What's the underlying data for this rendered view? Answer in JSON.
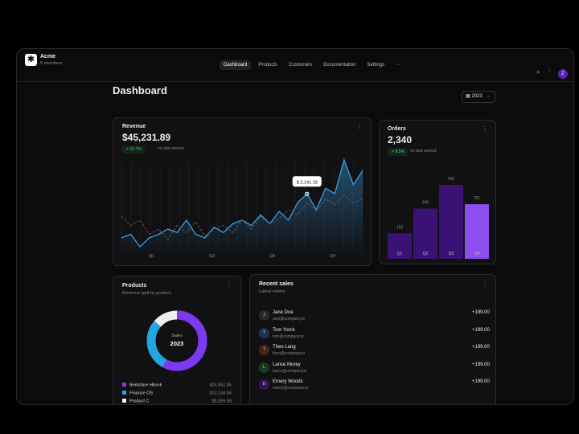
{
  "header": {
    "org": "Acme",
    "members": "8 members",
    "nav": [
      "Dashboard",
      "Products",
      "Customers",
      "Documentation",
      "Settings",
      "···"
    ],
    "avatar": "Z"
  },
  "page": {
    "title": "Dashboard",
    "year": "2023"
  },
  "revenue": {
    "title": "Revenue",
    "total": "$45,231.89",
    "change": "↗ 21.7%",
    "change_note": "vs last period",
    "chart": {
      "type": "line",
      "categories": [
        "Q1",
        "Q2",
        "Q3",
        "Q4"
      ],
      "tooltip": "$ 2,141.18",
      "tooltip_index": 20,
      "series": [
        {
          "color": "#3a9ee4",
          "values": [
            900,
            1000,
            650,
            900,
            1000,
            1150,
            1050,
            1400,
            1000,
            900,
            1200,
            1050,
            1300,
            1400,
            1250,
            1550,
            1300,
            1650,
            1400,
            1900,
            2141.18,
            1700,
            2300,
            2150,
            3100,
            2400,
            2800
          ]
        },
        {
          "color": "#5a5a5e",
          "dashed": true,
          "values": [
            1500,
            1250,
            1400,
            1000,
            1150,
            850,
            1250,
            1050,
            1350,
            950,
            1150,
            1250,
            1050,
            1400,
            1150,
            1500,
            1300,
            1450,
            1700,
            1550,
            1900,
            1650,
            2000,
            1850,
            2100,
            1900,
            2000
          ]
        }
      ]
    }
  },
  "orders": {
    "title": "Orders",
    "total": "2,340",
    "change": "↗ 8.5%",
    "change_note": "vs last period",
    "chart": {
      "type": "bar",
      "categories": [
        "Q1",
        "Q2",
        "Q3",
        "Q4"
      ],
      "values": [
        150,
        295,
        435,
        321
      ],
      "colors": [
        "#3a1276",
        "#3a1276",
        "#3a1276",
        "#8b4ff0"
      ]
    }
  },
  "products": {
    "title": "Products",
    "subtitle": "Revenue split by product",
    "center_label": "Sales",
    "center_value": "2023",
    "chart": {
      "type": "pie",
      "categories": [
        "Berkshire eBook",
        "Finance OS",
        "Product C"
      ],
      "values": [
        24951.86,
        12234.84,
        5899.88
      ],
      "value_labels": [
        "$24,951.86",
        "$12,234.84",
        "$5,899.88"
      ],
      "colors": [
        "#7b3aed",
        "#23a6e2",
        "#eeeeee"
      ]
    }
  },
  "sales": {
    "title": "Recent sales",
    "subtitle": "Latest orders",
    "rows": [
      {
        "initial": "J",
        "name": "Jane Doe",
        "email": "jane@company.io",
        "amount": "+199.00"
      },
      {
        "initial": "T",
        "name": "Tom Yorck",
        "email": "tom@company.io",
        "amount": "+199.00"
      },
      {
        "initial": "T",
        "name": "Theo Lang",
        "email": "theo@company.io",
        "amount": "+199.00"
      },
      {
        "initial": "L",
        "name": "Lance Morey",
        "email": "lance@company.io",
        "amount": "+199.00"
      },
      {
        "initial": "E",
        "name": "Emery Woods",
        "email": "emery@company.io",
        "amount": "+199.00"
      }
    ]
  }
}
